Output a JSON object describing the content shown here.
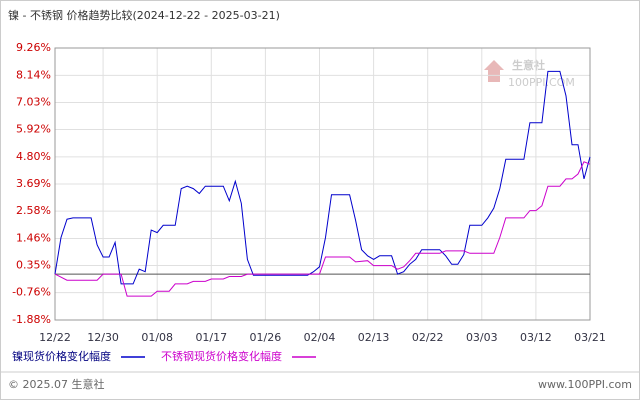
{
  "chart_data": {
    "type": "line",
    "title": "镍 - 不锈钢 价格趋势比较(2024-12-22 - 2025-03-21)",
    "xlim": [
      "12/22",
      "03/21"
    ],
    "xticks": [
      "12/22",
      "12/30",
      "01/08",
      "01/17",
      "01/26",
      "02/04",
      "02/13",
      "02/22",
      "03/03",
      "03/12",
      "03/21"
    ],
    "ylim": [
      -1.88,
      9.26
    ],
    "yticks": [
      {
        "value": 9.26,
        "label": "9.26%"
      },
      {
        "value": 8.14,
        "label": "8.14%"
      },
      {
        "value": 7.03,
        "label": "7.03%"
      },
      {
        "value": 5.92,
        "label": "5.92%"
      },
      {
        "value": 4.8,
        "label": "4.80%"
      },
      {
        "value": 3.69,
        "label": "3.69%"
      },
      {
        "value": 2.58,
        "label": "2.58%"
      },
      {
        "value": 1.46,
        "label": "1.46%"
      },
      {
        "value": 0.35,
        "label": "0.35%"
      },
      {
        "value": -0.76,
        "label": "-0.76%"
      },
      {
        "value": -1.88,
        "label": "-1.88%"
      }
    ],
    "grid": true,
    "series": [
      {
        "name": "镍现货价格变化幅度",
        "color": "#0000cc",
        "x": [
          "12/22",
          "12/23",
          "12/24",
          "12/25",
          "12/28",
          "12/29",
          "12/30",
          "12/31",
          "01/01",
          "01/02",
          "01/04",
          "01/05",
          "01/06",
          "01/07",
          "01/08",
          "01/09",
          "01/11",
          "01/12",
          "01/13",
          "01/14",
          "01/15",
          "01/16",
          "01/19",
          "01/20",
          "01/21",
          "01/22",
          "01/23",
          "01/24",
          "02/02",
          "02/03",
          "02/04",
          "02/05",
          "02/06",
          "02/09",
          "02/10",
          "02/11",
          "02/12",
          "02/13",
          "02/14",
          "02/16",
          "02/17",
          "02/18",
          "02/19",
          "02/20",
          "02/21",
          "02/24",
          "02/25",
          "02/26",
          "02/27",
          "02/28",
          "03/01",
          "03/03",
          "03/04",
          "03/05",
          "03/06",
          "03/07",
          "03/10",
          "03/11",
          "03/13",
          "03/14",
          "03/16",
          "03/17",
          "03/18",
          "03/19",
          "03/20",
          "03/21"
        ],
        "values": [
          0.0,
          1.5,
          2.25,
          2.3,
          2.3,
          1.2,
          0.7,
          0.7,
          1.3,
          -0.4,
          -0.4,
          0.2,
          0.1,
          1.8,
          1.7,
          2.0,
          2.0,
          3.5,
          3.6,
          3.5,
          3.3,
          3.6,
          3.6,
          3.0,
          3.8,
          2.9,
          0.6,
          -0.05,
          -0.05,
          0.1,
          0.3,
          1.5,
          3.25,
          3.25,
          2.2,
          1.0,
          0.75,
          0.6,
          0.75,
          0.75,
          0.0,
          0.1,
          0.4,
          0.6,
          1.0,
          1.0,
          0.75,
          0.4,
          0.4,
          0.8,
          2.0,
          2.0,
          2.3,
          2.7,
          3.5,
          4.7,
          4.7,
          6.2,
          6.2,
          8.3,
          8.3,
          7.3,
          5.3,
          5.3,
          3.9,
          4.8
        ]
      },
      {
        "name": "不锈钢现货价格变化幅度",
        "color": "#cc00cc",
        "x": [
          "12/22",
          "12/24",
          "12/29",
          "12/30",
          "01/01",
          "01/02",
          "01/03",
          "01/07",
          "01/08",
          "01/09",
          "01/10",
          "01/11",
          "01/13",
          "01/14",
          "01/16",
          "01/17",
          "01/19",
          "01/20",
          "01/22",
          "01/23",
          "02/04",
          "02/05",
          "02/09",
          "02/10",
          "02/12",
          "02/13",
          "02/16",
          "02/17",
          "02/18",
          "02/19",
          "02/20",
          "02/24",
          "02/25",
          "02/28",
          "03/01",
          "03/05",
          "03/06",
          "03/07",
          "03/10",
          "03/11",
          "03/12",
          "03/13",
          "03/14",
          "03/16",
          "03/17",
          "03/18",
          "03/19",
          "03/20",
          "03/21"
        ],
        "values": [
          0.0,
          -0.25,
          -0.25,
          0.0,
          0.0,
          0.0,
          -0.9,
          -0.9,
          -0.7,
          -0.7,
          -0.7,
          -0.4,
          -0.4,
          -0.3,
          -0.3,
          -0.2,
          -0.2,
          -0.1,
          -0.1,
          0.0,
          0.0,
          0.7,
          0.7,
          0.5,
          0.55,
          0.35,
          0.35,
          0.2,
          0.3,
          0.55,
          0.85,
          0.85,
          0.95,
          0.95,
          0.85,
          0.85,
          1.5,
          2.3,
          2.3,
          2.6,
          2.6,
          2.8,
          3.6,
          3.6,
          3.9,
          3.9,
          4.1,
          4.6,
          4.5
        ]
      }
    ]
  },
  "watermark": {
    "name": "生意社",
    "site": "100PPI.COM"
  },
  "footer": {
    "copyright": "© 2025.07 生意社",
    "site": "www.100PPI.com"
  }
}
